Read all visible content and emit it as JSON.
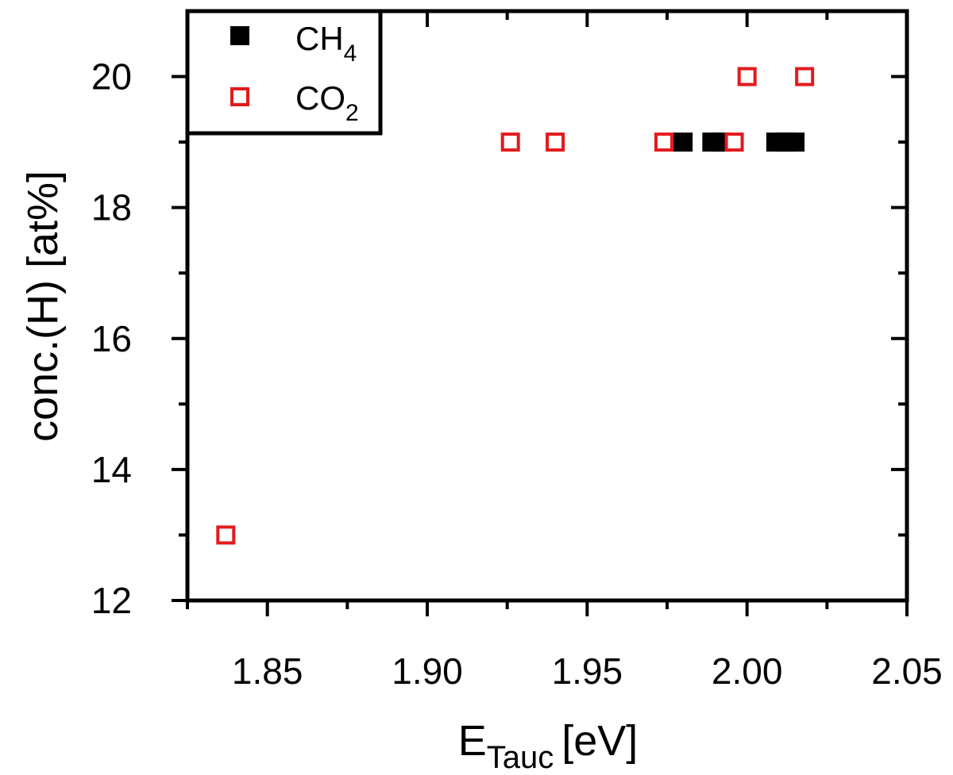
{
  "chart_data": {
    "type": "scatter",
    "xlabel": "E",
    "xlabel_sub": "Tauc",
    "xlabel_unit": "[eV]",
    "ylabel": "conc.(H)  [at%]",
    "xlim": [
      1.825,
      2.05
    ],
    "ylim": [
      12,
      21
    ],
    "x_ticks": [
      1.85,
      1.9,
      1.95,
      2.0,
      2.05
    ],
    "x_tick_labels": [
      "1.85",
      "1.90",
      "1.95",
      "2.00",
      "2.05"
    ],
    "x_minor_ticks": [
      1.825,
      1.875,
      1.925,
      1.975,
      2.025
    ],
    "y_ticks": [
      12,
      14,
      16,
      18,
      20
    ],
    "y_tick_labels": [
      "12",
      "14",
      "16",
      "18",
      "20"
    ],
    "y_minor_ticks": [
      13,
      15,
      17,
      19
    ],
    "grid": false,
    "legend_position": "top-left",
    "series": [
      {
        "name": "CH",
        "name_sub": "4",
        "marker": "filled-square",
        "color": "#000000",
        "x": [
          1.98,
          1.989,
          1.992,
          2.009,
          2.012,
          2.015
        ],
        "y": [
          19,
          19,
          19,
          19,
          19,
          19
        ]
      },
      {
        "name": "CO",
        "name_sub": "2",
        "marker": "open-square",
        "color": "#e31a1c",
        "x": [
          1.837,
          1.926,
          1.94,
          1.974,
          1.996,
          2.0,
          2.018
        ],
        "y": [
          13,
          19,
          19,
          19,
          19,
          20,
          20
        ]
      }
    ]
  }
}
